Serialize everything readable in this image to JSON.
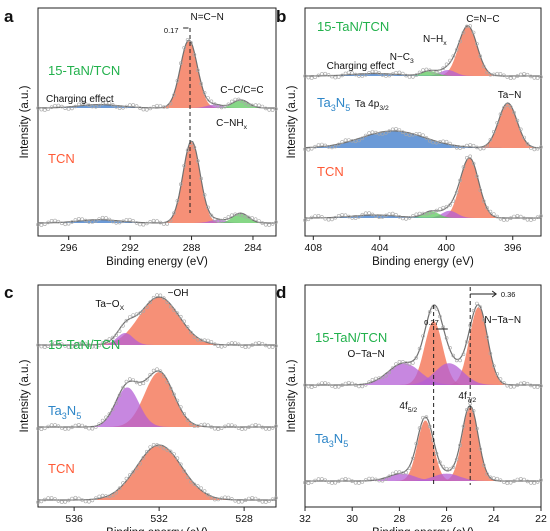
{
  "figure": {
    "panel_count": 4
  },
  "colors": {
    "green_label": "#22b14c",
    "red_label": "#ff5a36",
    "blue_label": "#2e86c8",
    "peak_orange": "#f36b4a",
    "peak_green": "#5ec95e",
    "peak_purple": "#b45fd6",
    "peak_blue": "#3a78c9",
    "envelope": "#707070",
    "scatter": "#a8a8a8"
  },
  "chart_data": [
    {
      "panel": "a",
      "type": "line",
      "xlabel": "Binding energy (eV)",
      "ylabel": "Intensity (a.u.)",
      "xlim": [
        298,
        282.5
      ],
      "x_reversed": true,
      "xticks": [
        296,
        292,
        288,
        284
      ],
      "spectra": [
        {
          "name": "15-TaN/TCN",
          "color": "green",
          "peaks": [
            {
              "label": "N=C−N",
              "center": 288.17,
              "height": 1.0,
              "fwhm": 1.3,
              "color": "orange"
            },
            {
              "label": "C−NH",
              "label_sub": "x",
              "center": 286.5,
              "height": 0.05,
              "fwhm": 1.2,
              "color": "purple"
            },
            {
              "label": "C−C/C=C",
              "center": 284.8,
              "height": 0.12,
              "fwhm": 1.2,
              "color": "green"
            },
            {
              "label": "Charging effect",
              "center": 294.0,
              "height": 0.05,
              "fwhm": 3.2,
              "color": "blue"
            }
          ]
        },
        {
          "name": "TCN",
          "color": "red",
          "peaks": [
            {
              "label": "N=C−N",
              "center": 288.0,
              "height": 1.0,
              "fwhm": 1.3,
              "color": "orange"
            },
            {
              "label": "C−NH",
              "label_sub": "x",
              "center": 286.3,
              "height": 0.04,
              "fwhm": 1.2,
              "color": "purple"
            },
            {
              "label": "C−C/C=C",
              "center": 284.8,
              "height": 0.12,
              "fwhm": 1.2,
              "color": "green"
            },
            {
              "label": "Charging effect",
              "center": 294.0,
              "height": 0.04,
              "fwhm": 3.2,
              "color": "blue"
            }
          ]
        }
      ],
      "annotations": [
        {
          "text": "0.17",
          "kind": "shift"
        }
      ]
    },
    {
      "panel": "b",
      "type": "line",
      "xlabel": "Binding energy (eV)",
      "ylabel": "Intensity (a.u.)",
      "xlim": [
        408.5,
        394.3
      ],
      "x_reversed": true,
      "xticks": [
        408,
        404,
        400,
        396
      ],
      "spectra": [
        {
          "name": "15-TaN/TCN",
          "color": "green",
          "peaks": [
            {
              "label": "C=N−C",
              "center": 398.7,
              "height": 1.0,
              "fwhm": 1.3,
              "color": "orange"
            },
            {
              "label": "N−H",
              "label_sub": "x",
              "center": 399.9,
              "height": 0.12,
              "fwhm": 1.1,
              "color": "purple"
            },
            {
              "label": "N−C",
              "label_sub": "3",
              "center": 401.0,
              "height": 0.1,
              "fwhm": 1.1,
              "color": "green"
            },
            {
              "label": "Charging effect",
              "center": 404.3,
              "height": 0.05,
              "fwhm": 3.2,
              "color": "blue"
            }
          ]
        },
        {
          "name": "Ta3N5",
          "name_parts": [
            "Ta",
            "3",
            "N",
            "5"
          ],
          "color": "blue",
          "peaks": [
            {
              "label": "Ta−N",
              "center": 396.3,
              "height": 1.0,
              "fwhm": 1.3,
              "color": "orange"
            },
            {
              "label": "Ta 4p",
              "label_sub": "3/2",
              "center": 403.2,
              "height": 0.38,
              "fwhm": 4.5,
              "color": "blue"
            }
          ]
        },
        {
          "name": "TCN",
          "color": "red",
          "peaks": [
            {
              "label": "C=N−C",
              "center": 398.6,
              "height": 1.0,
              "fwhm": 1.3,
              "color": "orange"
            },
            {
              "label": "N−H",
              "label_sub": "x",
              "center": 399.8,
              "height": 0.12,
              "fwhm": 1.1,
              "color": "purple"
            },
            {
              "label": "N−C",
              "label_sub": "3",
              "center": 400.9,
              "height": 0.11,
              "fwhm": 1.1,
              "color": "green"
            },
            {
              "label": "Charging effect",
              "center": 404.3,
              "height": 0.05,
              "fwhm": 3.2,
              "color": "blue"
            }
          ]
        }
      ]
    },
    {
      "panel": "c",
      "type": "line",
      "xlabel": "Binding energy (eV)",
      "ylabel": "Intensity (a.u.)",
      "xlim": [
        537.7,
        526.5
      ],
      "x_reversed": true,
      "xticks": [
        536,
        532,
        528
      ],
      "spectra": [
        {
          "name": "15-TaN/TCN",
          "color": "green",
          "peaks": [
            {
              "label": "−OH",
              "center": 532.0,
              "height": 1.0,
              "fwhm": 2.2,
              "color": "orange"
            },
            {
              "label": "Ta−O",
              "label_sub": "X",
              "center": 533.6,
              "height": 0.25,
              "fwhm": 0.9,
              "color": "purple"
            }
          ]
        },
        {
          "name": "Ta3N5",
          "name_parts": [
            "Ta",
            "3",
            "N",
            "5"
          ],
          "color": "blue",
          "peaks": [
            {
              "label": "−OH",
              "center": 532.0,
              "height": 1.0,
              "fwhm": 1.6,
              "color": "orange"
            },
            {
              "label": "Ta−O",
              "label_sub": "X",
              "center": 533.5,
              "height": 0.72,
              "fwhm": 1.3,
              "color": "purple"
            }
          ]
        },
        {
          "name": "TCN",
          "color": "red",
          "peaks": [
            {
              "label": "−OH",
              "center": 532.0,
              "height": 1.0,
              "fwhm": 2.5,
              "color": "orange"
            }
          ]
        }
      ]
    },
    {
      "panel": "d",
      "type": "line",
      "xlabel": "Binding energy (eV)",
      "ylabel": "Intensity (a.u.)",
      "xlim": [
        32,
        22
      ],
      "x_reversed": true,
      "xticks": [
        32,
        30,
        28,
        26,
        24,
        22
      ],
      "spectra": [
        {
          "name": "15-TaN/TCN",
          "color": "green",
          "peaks": [
            {
              "label": "N−Ta−N",
              "center": 24.65,
              "height": 1.0,
              "fwhm": 0.9,
              "color": "orange"
            },
            {
              "label": "",
              "center": 26.55,
              "height": 0.82,
              "fwhm": 0.9,
              "color": "orange"
            },
            {
              "label": "O−Ta−N",
              "center": 27.8,
              "height": 0.28,
              "fwhm": 1.6,
              "color": "purple"
            },
            {
              "label": "",
              "center": 25.9,
              "height": 0.28,
              "fwhm": 1.4,
              "color": "purple"
            }
          ]
        },
        {
          "name": "Ta3N5",
          "name_parts": [
            "Ta",
            "3",
            "N",
            "5"
          ],
          "color": "blue",
          "peaks": [
            {
              "label": "4f",
              "label_sub": "7/2",
              "center": 25.0,
              "height": 1.0,
              "fwhm": 0.8,
              "color": "orange"
            },
            {
              "label": "4f",
              "label_sub": "5/2",
              "center": 26.9,
              "height": 0.82,
              "fwhm": 0.8,
              "color": "orange"
            },
            {
              "label": "",
              "center": 27.9,
              "height": 0.1,
              "fwhm": 1.3,
              "color": "purple"
            },
            {
              "label": "",
              "center": 26.0,
              "height": 0.1,
              "fwhm": 1.3,
              "color": "purple"
            }
          ]
        }
      ],
      "annotations": [
        {
          "text": "0.27",
          "kind": "shift"
        },
        {
          "text": "0.36",
          "kind": "shift"
        }
      ]
    }
  ]
}
